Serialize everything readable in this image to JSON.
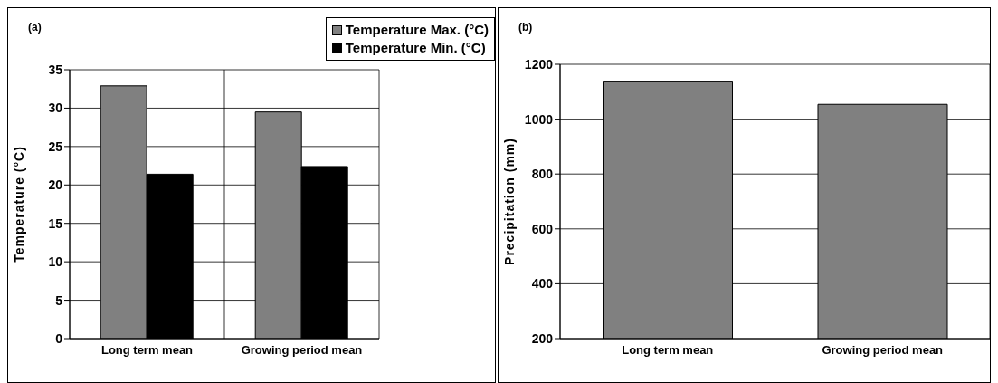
{
  "chart_data": [
    {
      "type": "bar",
      "title": "(a)",
      "categories": [
        "Long term mean",
        "Growing period mean"
      ],
      "series": [
        {
          "name": "Temperature Max. (°C)",
          "color": "#808080",
          "values": [
            32.9,
            29.5
          ]
        },
        {
          "name": "Temperature Min. (°C)",
          "color": "#000000",
          "values": [
            21.4,
            22.4
          ]
        }
      ],
      "ylabel": "Temperature (°C)",
      "ylim": [
        0,
        35
      ],
      "yticks": [
        0,
        5,
        10,
        15,
        20,
        25,
        30,
        35
      ],
      "grid": true,
      "legend": "top right"
    },
    {
      "type": "bar",
      "title": "(b)",
      "categories": [
        "Long term mean",
        "Growing period mean"
      ],
      "series": [
        {
          "color": "#808080",
          "values": [
            1136,
            1054
          ]
        }
      ],
      "ylabel": "Precipitation (mm)",
      "ylim": [
        200,
        1200
      ],
      "yticks": [
        200,
        400,
        600,
        800,
        1000,
        1200
      ],
      "grid": true
    }
  ]
}
